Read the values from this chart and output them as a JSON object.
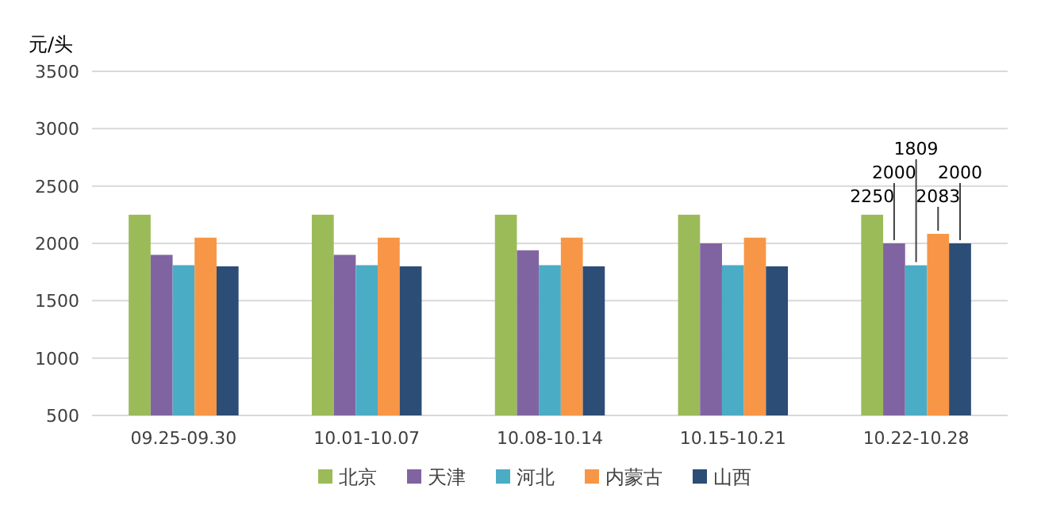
{
  "chart_data": {
    "type": "bar",
    "ylabel": "元/头",
    "categories": [
      "09.25-09.30",
      "10.01-10.07",
      "10.08-10.14",
      "10.15-10.21",
      "10.22-10.28"
    ],
    "series": [
      {
        "name": "北京",
        "color": "#9bbb59",
        "values": [
          2250,
          2250,
          2250,
          2250,
          2250
        ],
        "value_labels": [
          null,
          null,
          null,
          null,
          "2250"
        ]
      },
      {
        "name": "天津",
        "color": "#8064a2",
        "values": [
          1900,
          1900,
          1940,
          2000,
          2000
        ],
        "value_labels": [
          null,
          null,
          null,
          null,
          "2000"
        ]
      },
      {
        "name": "河北",
        "color": "#4bacc6",
        "values": [
          1810,
          1810,
          1810,
          1810,
          1809
        ],
        "value_labels": [
          null,
          null,
          null,
          null,
          "1809"
        ]
      },
      {
        "name": "内蒙古",
        "color": "#f79646",
        "values": [
          2050,
          2050,
          2050,
          2050,
          2083
        ],
        "value_labels": [
          null,
          null,
          null,
          null,
          "2083"
        ]
      },
      {
        "name": "山西",
        "color": "#2c4d75",
        "values": [
          1800,
          1800,
          1800,
          1800,
          2000
        ],
        "value_labels": [
          null,
          null,
          null,
          null,
          "2000"
        ]
      }
    ],
    "ylim": [
      500,
      3500
    ],
    "yticks": [
      500,
      1000,
      1500,
      2000,
      2500,
      3000,
      3500
    ],
    "grid": "y",
    "legend": "bottom"
  }
}
